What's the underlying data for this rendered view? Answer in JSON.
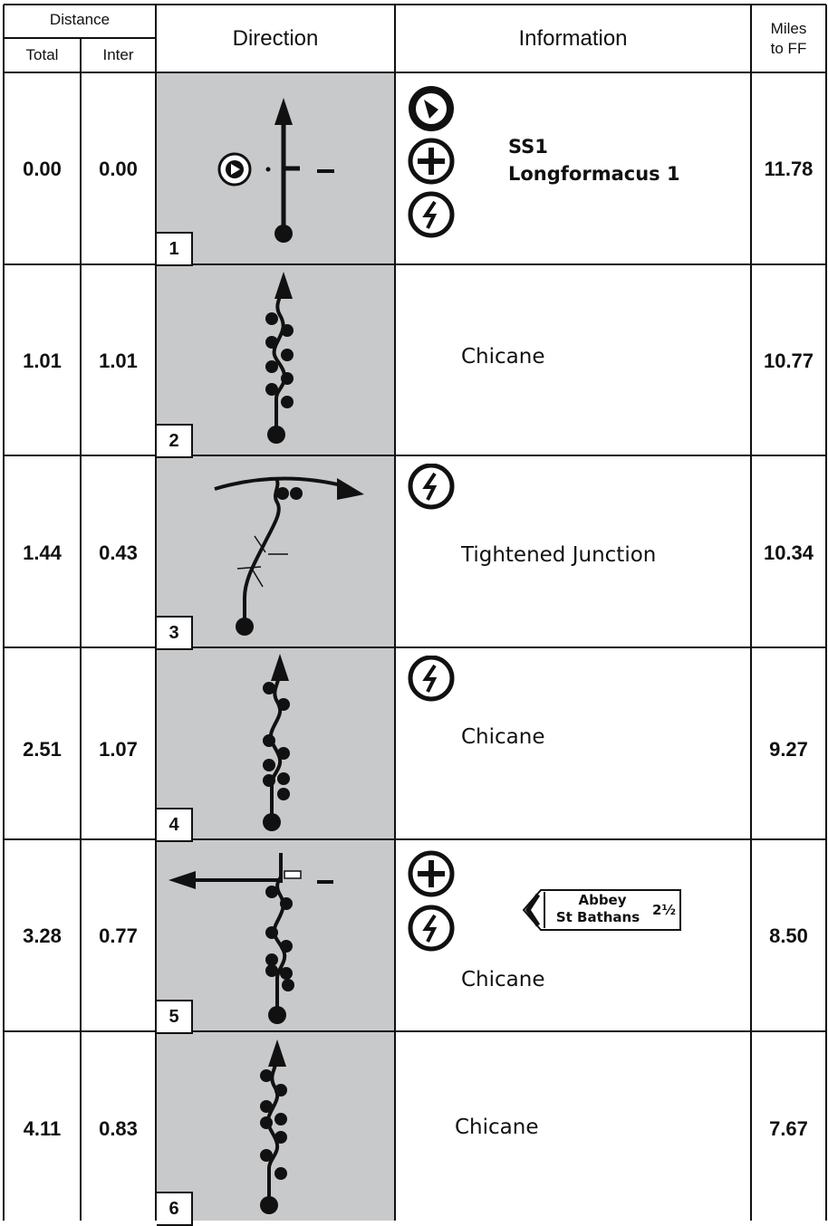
{
  "header": {
    "distance": "Distance",
    "total": "Total",
    "inter": "Inter",
    "direction": "Direction",
    "information": "Information",
    "miles_line1": "Miles",
    "miles_line2": "to FF"
  },
  "rows": [
    {
      "total": "0.00",
      "inter": "0.00",
      "box": "1",
      "info_title": "SS1",
      "info_subtitle": "Longformacus 1",
      "info_text": "",
      "miles": "11.78",
      "icons": [
        "start-flag-icon",
        "junction-cross-icon",
        "caution-icon"
      ]
    },
    {
      "total": "1.01",
      "inter": "1.01",
      "box": "2",
      "info_title": "",
      "info_subtitle": "",
      "info_text": "Chicane",
      "miles": "10.77",
      "icons": []
    },
    {
      "total": "1.44",
      "inter": "0.43",
      "box": "3",
      "info_title": "",
      "info_subtitle": "",
      "info_text": "Tightened Junction",
      "miles": "10.34",
      "icons": [
        "caution-icon"
      ]
    },
    {
      "total": "2.51",
      "inter": "1.07",
      "box": "4",
      "info_title": "",
      "info_subtitle": "",
      "info_text": "Chicane",
      "miles": "9.27",
      "icons": [
        "caution-icon"
      ]
    },
    {
      "total": "3.28",
      "inter": "0.77",
      "box": "5",
      "info_title": "",
      "info_subtitle": "",
      "info_text": "Chicane",
      "miles": "8.50",
      "icons": [
        "junction-cross-icon",
        "caution-icon"
      ],
      "sign": {
        "line1": "Abbey",
        "line2": "St Bathans",
        "distance": "2½"
      }
    },
    {
      "total": "4.11",
      "inter": "0.83",
      "box": "6",
      "info_title": "",
      "info_subtitle": "",
      "info_text": "Chicane",
      "miles": "7.67",
      "icons": []
    }
  ],
  "colors": {
    "direction_bg": "#c8c9cb",
    "ink": "#111111"
  }
}
